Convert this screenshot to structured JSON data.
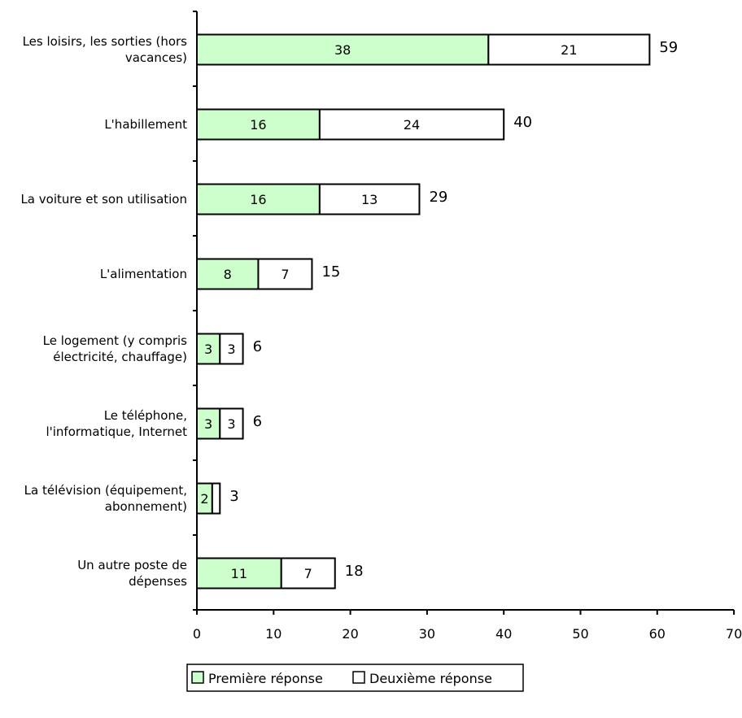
{
  "chart_data": {
    "type": "bar",
    "orientation": "horizontal",
    "stacked": true,
    "categories": [
      [
        "Les loisirs, les sorties (hors",
        "vacances)"
      ],
      [
        "L'habillement"
      ],
      [
        "La voiture et son utilisation"
      ],
      [
        "L'alimentation"
      ],
      [
        "Le logement (y compris",
        "électricité, chauffage)"
      ],
      [
        "Le téléphone,",
        "l'informatique, Internet"
      ],
      [
        "La télévision (équipement,",
        "abonnement)"
      ],
      [
        "Un autre poste de",
        "dépenses"
      ]
    ],
    "series": [
      {
        "name": "Première réponse",
        "color": "#ccffcc",
        "values": [
          38,
          16,
          16,
          8,
          3,
          3,
          2,
          11
        ]
      },
      {
        "name": "Deuxième réponse",
        "color": "#ffffff",
        "values": [
          21,
          24,
          13,
          7,
          3,
          3,
          1,
          7
        ]
      }
    ],
    "series_value_labels": [
      [
        "38",
        "16",
        "16",
        "8",
        "3",
        "3",
        "2",
        "11"
      ],
      [
        "21",
        "24",
        "13",
        "7",
        "3",
        "3",
        "",
        "7"
      ]
    ],
    "totals": [
      59,
      40,
      29,
      15,
      6,
      6,
      3,
      18
    ],
    "xlim": [
      0,
      70
    ],
    "xticks": [
      0,
      10,
      20,
      30,
      40,
      50,
      60,
      70
    ],
    "grid": false,
    "legend_position": "bottom"
  }
}
